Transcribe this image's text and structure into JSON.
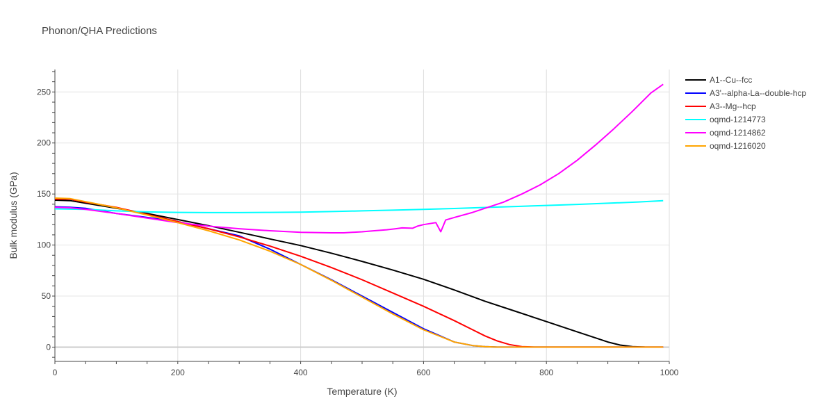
{
  "chart_data": {
    "type": "line",
    "title": "Phonon/QHA Predictions",
    "xlabel": "Temperature (K)",
    "ylabel": "Bulk modulus (GPa)",
    "xlim": [
      0,
      1000
    ],
    "ylim": [
      -14,
      272
    ],
    "xticks": [
      0,
      200,
      400,
      600,
      800,
      1000
    ],
    "yticks": [
      0,
      50,
      100,
      150,
      200,
      250
    ],
    "grid": true,
    "legend_position": "top-right",
    "series": [
      {
        "name": "A1--Cu--fcc",
        "color": "#000000",
        "x": [
          0,
          25,
          50,
          100,
          150,
          200,
          250,
          300,
          350,
          400,
          450,
          500,
          550,
          600,
          650,
          700,
          750,
          800,
          850,
          880,
          900,
          920,
          940,
          960
        ],
        "y": [
          144,
          143.5,
          141,
          136,
          131,
          125,
          119,
          112.5,
          106,
          99.5,
          92,
          84,
          75.5,
          66.5,
          56,
          45,
          35,
          25,
          15,
          9,
          5,
          2,
          0.5,
          0
        ]
      },
      {
        "name": "A3'--alpha-La--double-hcp",
        "color": "#0000ff",
        "x": [
          0,
          25,
          50,
          100,
          150,
          200,
          250,
          300,
          350,
          400,
          450,
          500,
          550,
          600,
          650,
          680,
          700,
          720,
          750,
          800,
          990
        ],
        "y": [
          137.5,
          137,
          136,
          131,
          127,
          123,
          116,
          109,
          96,
          81,
          66,
          50,
          34,
          18,
          5,
          1.5,
          0.5,
          0,
          0,
          0,
          0
        ]
      },
      {
        "name": "A3--Mg--hcp",
        "color": "#ff0000",
        "x": [
          0,
          25,
          50,
          100,
          150,
          200,
          250,
          300,
          350,
          400,
          450,
          500,
          550,
          600,
          650,
          680,
          700,
          720,
          740,
          760,
          780,
          990
        ],
        "y": [
          145,
          145,
          142,
          137,
          130,
          123,
          116,
          108,
          99,
          89,
          78,
          66,
          53,
          40,
          26,
          17,
          11,
          6,
          2.5,
          0.5,
          0,
          0
        ]
      },
      {
        "name": "oqmd-1214773",
        "color": "#00ffff",
        "x": [
          0,
          50,
          100,
          150,
          200,
          250,
          300,
          350,
          400,
          450,
          500,
          550,
          600,
          650,
          700,
          750,
          800,
          850,
          900,
          950,
          990
        ],
        "y": [
          135.5,
          135,
          133.5,
          132.5,
          132,
          131.8,
          131.8,
          132,
          132.3,
          132.8,
          133.5,
          134.2,
          135,
          135.8,
          136.8,
          137.8,
          138.8,
          139.8,
          141,
          142.2,
          143.5
        ]
      },
      {
        "name": "oqmd-1214862",
        "color": "#ff00ff",
        "x": [
          0,
          25,
          50,
          100,
          150,
          200,
          250,
          300,
          350,
          400,
          450,
          470,
          500,
          520,
          540,
          555,
          565,
          582,
          590,
          600,
          620,
          628,
          636,
          650,
          680,
          700,
          730,
          760,
          790,
          820,
          850,
          880,
          910,
          940,
          970,
          990
        ],
        "y": [
          137,
          136.5,
          135,
          131,
          126.5,
          122,
          118.5,
          116,
          114,
          112.5,
          112,
          112,
          113,
          114,
          115,
          116,
          116.8,
          116.5,
          118.5,
          120,
          122,
          113,
          124.5,
          127,
          132,
          136,
          142,
          150,
          159,
          170,
          183,
          198,
          214,
          231,
          249,
          257.5
        ]
      },
      {
        "name": "oqmd-1216020",
        "color": "#ffa500",
        "x": [
          0,
          25,
          50,
          100,
          150,
          200,
          250,
          300,
          350,
          400,
          450,
          500,
          550,
          600,
          650,
          680,
          700,
          720,
          750,
          800,
          990
        ],
        "y": [
          146,
          145.5,
          142.5,
          136.5,
          129.5,
          122,
          114,
          105,
          94,
          81,
          65.5,
          49,
          32.5,
          17,
          5,
          1.5,
          0.5,
          0,
          0,
          0,
          0
        ]
      }
    ]
  }
}
